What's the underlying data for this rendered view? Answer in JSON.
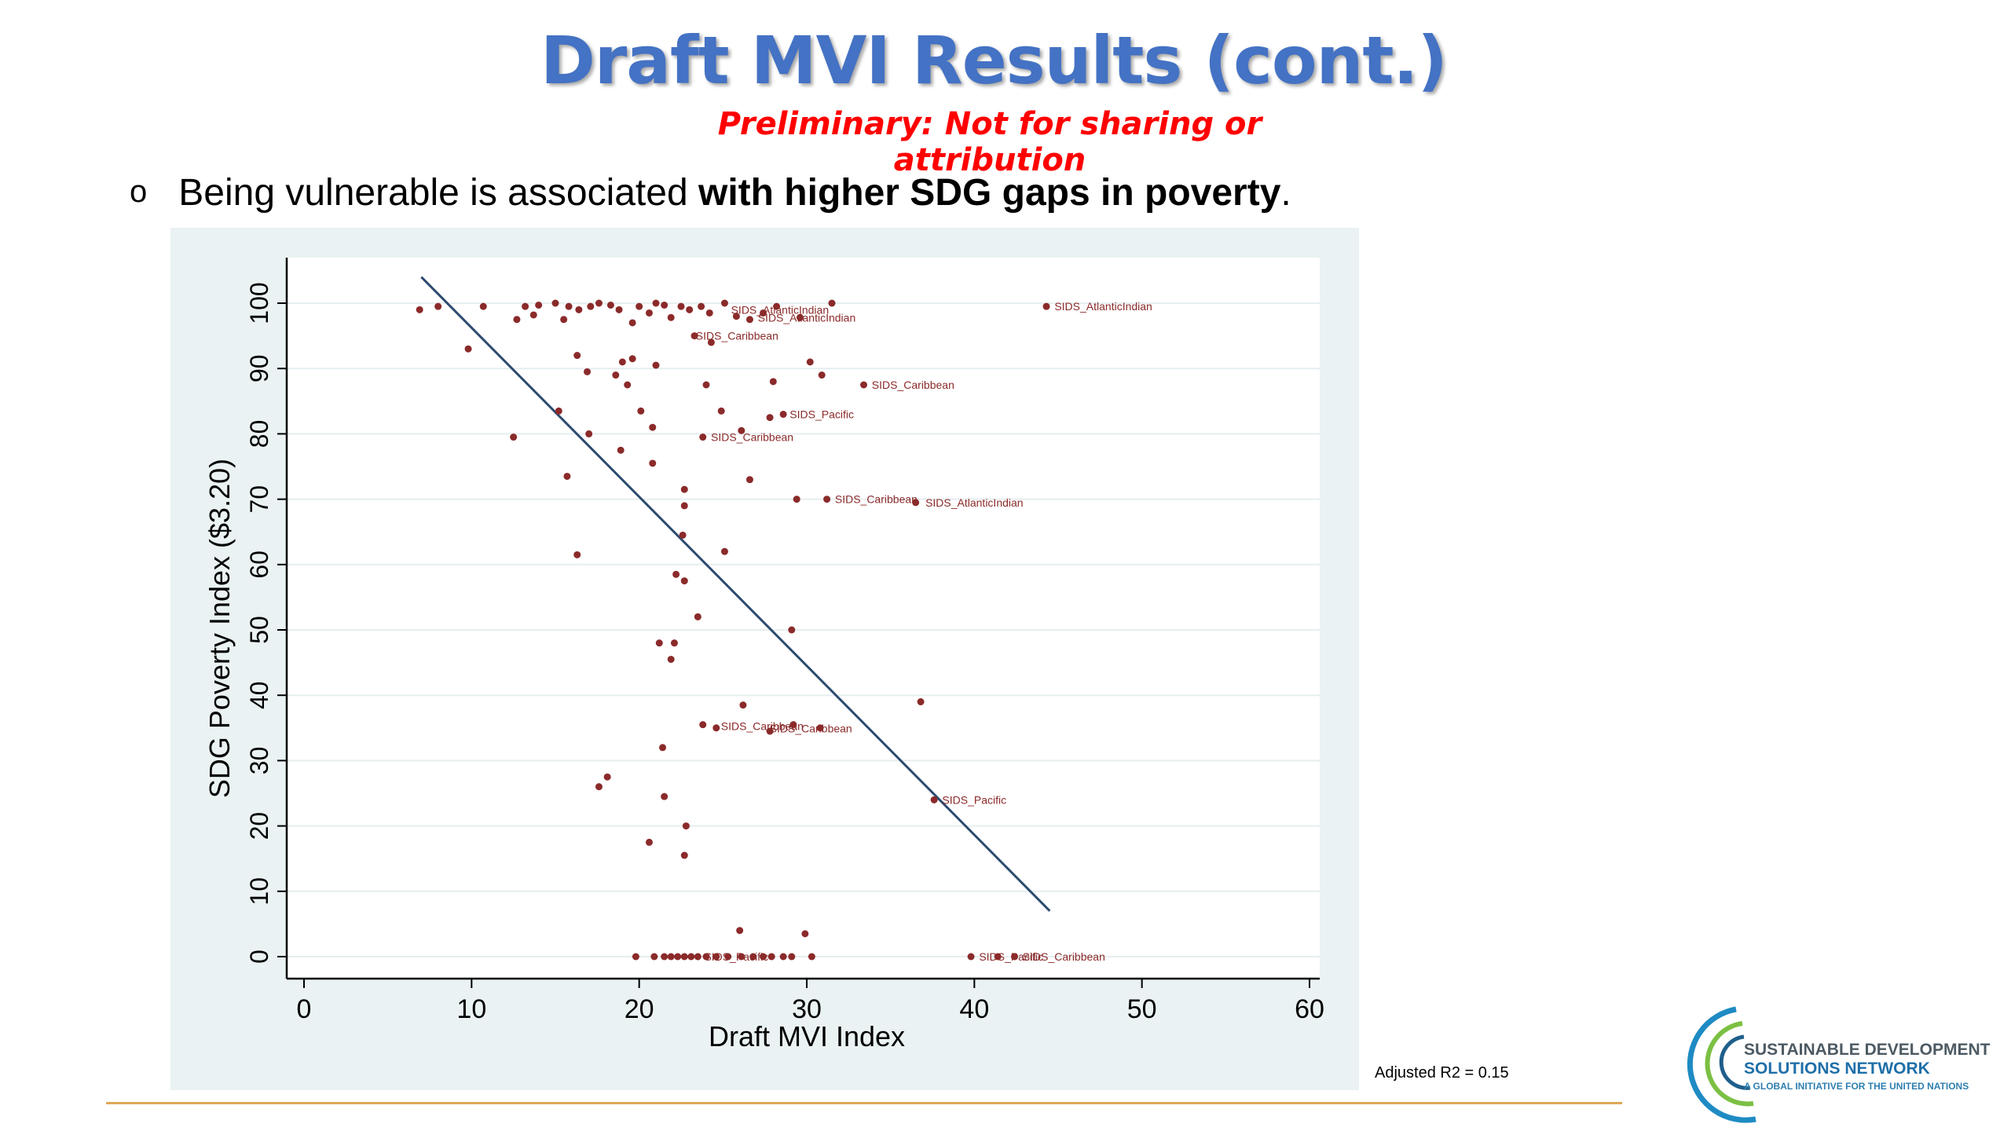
{
  "slide": {
    "title": "Draft MVI Results (cont.)",
    "subtitle": "Preliminary: Not for sharing or attribution",
    "bullet_marker": "o",
    "bullet_plain": "Being vulnerable is associated ",
    "bullet_bold": "with higher SDG gaps in poverty",
    "bullet_end": ".",
    "footnote": "Adjusted R2 = 0.15"
  },
  "logo": {
    "line1": "SUSTAINABLE DEVELOPMENT",
    "line2": "SOLUTIONS NETWORK",
    "line3": "A GLOBAL INITIATIVE FOR THE UNITED NATIONS"
  },
  "colors": {
    "title": "#4472c4",
    "subtitle": "#ff0000",
    "points": "#8b2a2a",
    "fit_line": "#2c4a6e",
    "panel_bg": "#eaf2f3",
    "rule": "#e0a855"
  },
  "chart_data": {
    "type": "scatter",
    "xlabel": "Draft MVI Index",
    "ylabel": "SDG Poverty Index ($3.20)",
    "xlim": [
      0,
      60
    ],
    "ylim": [
      0,
      100
    ],
    "xticks": [
      "0",
      "10",
      "20",
      "30",
      "40",
      "50",
      "60"
    ],
    "yticks": [
      "0",
      "10",
      "20",
      "30",
      "40",
      "50",
      "60",
      "70",
      "80",
      "90",
      "100"
    ],
    "grid": true,
    "fit_line": {
      "x": [
        7,
        44.5
      ],
      "y": [
        104,
        7
      ]
    },
    "points": [
      [
        6.9,
        99
      ],
      [
        8,
        99.5
      ],
      [
        10.7,
        99.5
      ],
      [
        12.7,
        97.5
      ],
      [
        13.2,
        99.5
      ],
      [
        13.7,
        98.2
      ],
      [
        14,
        99.7
      ],
      [
        15,
        100
      ],
      [
        15.5,
        97.5
      ],
      [
        15.8,
        99.5
      ],
      [
        16.4,
        99
      ],
      [
        17.1,
        99.5
      ],
      [
        17.6,
        100
      ],
      [
        18.3,
        99.7
      ],
      [
        18.8,
        99
      ],
      [
        19.6,
        97
      ],
      [
        20,
        99.5
      ],
      [
        20.6,
        98.5
      ],
      [
        21,
        100
      ],
      [
        21.5,
        99.7
      ],
      [
        21.9,
        97.8
      ],
      [
        22.5,
        99.5
      ],
      [
        23,
        99
      ],
      [
        23.7,
        99.5
      ],
      [
        24.2,
        98.5
      ],
      [
        25.1,
        100
      ],
      [
        25.8,
        98
      ],
      [
        28.2,
        99.5
      ],
      [
        31.5,
        100
      ],
      [
        9.8,
        93
      ],
      [
        16.3,
        92
      ],
      [
        16.9,
        89.5
      ],
      [
        18.6,
        89
      ],
      [
        19,
        91
      ],
      [
        19.6,
        91.5
      ],
      [
        21,
        90.5
      ],
      [
        24.3,
        94
      ],
      [
        23.3,
        95
      ],
      [
        19.3,
        87.5
      ],
      [
        24,
        87.5
      ],
      [
        28,
        88
      ],
      [
        30.2,
        91
      ],
      [
        30.9,
        89
      ],
      [
        33.4,
        87.5
      ],
      [
        12.5,
        79.5
      ],
      [
        15.2,
        83.5
      ],
      [
        17,
        80
      ],
      [
        18.9,
        77.5
      ],
      [
        20.1,
        83.5
      ],
      [
        20.8,
        81
      ],
      [
        23.8,
        79.5
      ],
      [
        24.9,
        83.5
      ],
      [
        26.1,
        80.5
      ],
      [
        27.8,
        82.5
      ],
      [
        28.6,
        83
      ],
      [
        20.8,
        75.5
      ],
      [
        15.7,
        73.5
      ],
      [
        22.7,
        71.5
      ],
      [
        22.7,
        69
      ],
      [
        26.6,
        73
      ],
      [
        29.4,
        70
      ],
      [
        31.2,
        70
      ],
      [
        36.5,
        69.5
      ],
      [
        22.6,
        64.5
      ],
      [
        25.1,
        62
      ],
      [
        16.3,
        61.5
      ],
      [
        22.2,
        58.5
      ],
      [
        22.7,
        57.5
      ],
      [
        23.5,
        52
      ],
      [
        29.1,
        50
      ],
      [
        21.2,
        48
      ],
      [
        22.1,
        48
      ],
      [
        21.9,
        45.5
      ],
      [
        26.2,
        38.5
      ],
      [
        36.8,
        39
      ],
      [
        23.8,
        35.5
      ],
      [
        24.6,
        35
      ],
      [
        29.2,
        35.5
      ],
      [
        30.8,
        35
      ],
      [
        27.8,
        34.5
      ],
      [
        21.4,
        32
      ],
      [
        17.6,
        26
      ],
      [
        18.1,
        27.5
      ],
      [
        21.5,
        24.5
      ],
      [
        22.8,
        20
      ],
      [
        37.6,
        24
      ],
      [
        20.6,
        17.5
      ],
      [
        22.7,
        15.5
      ],
      [
        26,
        4
      ],
      [
        29.9,
        3.5
      ],
      [
        19.8,
        0
      ],
      [
        20.9,
        0
      ],
      [
        21.5,
        0
      ],
      [
        21.9,
        0
      ],
      [
        22.3,
        0
      ],
      [
        22.7,
        0
      ],
      [
        23.1,
        0
      ],
      [
        23.5,
        0
      ],
      [
        24,
        0
      ],
      [
        24.6,
        0
      ],
      [
        25.3,
        0
      ],
      [
        26.1,
        0
      ],
      [
        26.8,
        0
      ],
      [
        27.4,
        0
      ],
      [
        27.9,
        0
      ],
      [
        28.6,
        0
      ],
      [
        29.1,
        0
      ],
      [
        30.3,
        0
      ],
      [
        39.8,
        0
      ],
      [
        41.4,
        0
      ],
      [
        42.4,
        0
      ],
      [
        26.6,
        97.5
      ],
      [
        27.4,
        98.5
      ],
      [
        29.6,
        97.8
      ],
      [
        44.3,
        99.5
      ]
    ],
    "annotations": [
      {
        "x": 44.5,
        "y": 99.5,
        "text": "SIDS_AtlanticIndian"
      },
      {
        "x": 25.2,
        "y": 99,
        "text": "SIDS_AtlanticIndian"
      },
      {
        "x": 26.8,
        "y": 97.8,
        "text": "SIDS_AtlanticIndian"
      },
      {
        "x": 23.1,
        "y": 95,
        "text": "SIDS_Caribbean"
      },
      {
        "x": 33.6,
        "y": 87.5,
        "text": "SIDS_Caribbean"
      },
      {
        "x": 28.7,
        "y": 83,
        "text": "SIDS_Pacific"
      },
      {
        "x": 24,
        "y": 79.5,
        "text": "SIDS_Caribbean"
      },
      {
        "x": 31.4,
        "y": 70,
        "text": "SIDS_Caribbean"
      },
      {
        "x": 36.8,
        "y": 69.5,
        "text": "SIDS_AtlanticIndian"
      },
      {
        "x": 24.6,
        "y": 35.3,
        "text": "SIDS_Caribbean"
      },
      {
        "x": 27.5,
        "y": 34.9,
        "text": "SIDS_Caribbean"
      },
      {
        "x": 37.8,
        "y": 24,
        "text": "SIDS_Pacific"
      },
      {
        "x": 23.6,
        "y": 0,
        "text": "SIDS_Pacific"
      },
      {
        "x": 40,
        "y": 0,
        "text": "SIDS_Pacific"
      },
      {
        "x": 42.6,
        "y": 0,
        "text": "SIDS_Caribbean"
      }
    ]
  }
}
